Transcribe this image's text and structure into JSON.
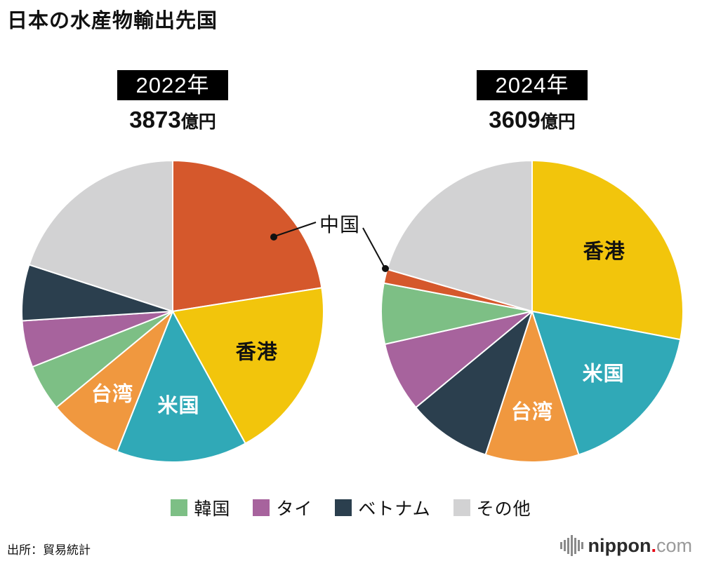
{
  "title": "日本の水産物輸出先国",
  "callout": {
    "label": "中国"
  },
  "colors": {
    "badge_bg": "#000000",
    "badge_text": "#ffffff",
    "callout_line": "#111111",
    "logo_dot": "#e60012"
  },
  "legend": {
    "items": [
      {
        "label": "韓国",
        "color": "#7dbf85"
      },
      {
        "label": "タイ",
        "color": "#a7639d"
      },
      {
        "label": "ベトナム",
        "color": "#2b3f4e"
      },
      {
        "label": "その他",
        "color": "#d2d2d3"
      }
    ]
  },
  "footer": {
    "source": "出所：貿易統計",
    "logo": {
      "brand": "nippon",
      "dot": ".",
      "tld": "com"
    }
  },
  "chart_data": [
    {
      "type": "pie",
      "year_label": "2022年",
      "total_number": "3873",
      "total_unit": "億円",
      "total_text": "3873億円",
      "start_angle": "top",
      "direction": "clockwise",
      "unit": "percent",
      "slices": [
        {
          "label": "中国",
          "percent": 22.5,
          "color": "#d5582c",
          "label_inside": false
        },
        {
          "label": "香港",
          "percent": 19.5,
          "color": "#f2c50c",
          "label_inside": true,
          "label_color": "#111111",
          "label_r": 0.62
        },
        {
          "label": "米国",
          "percent": 14.0,
          "color": "#30a9b7",
          "label_inside": true,
          "label_color": "#ffffff",
          "label_r": 0.63
        },
        {
          "label": "台湾",
          "percent": 8.0,
          "color": "#f0983f",
          "label_inside": true,
          "label_color": "#ffffff",
          "label_r": 0.68
        },
        {
          "label": "韓国",
          "percent": 5.0,
          "color": "#7dbf85",
          "label_inside": false
        },
        {
          "label": "タイ",
          "percent": 5.0,
          "color": "#a7639d",
          "label_inside": false
        },
        {
          "label": "ベトナム",
          "percent": 6.0,
          "color": "#2b3f4e",
          "label_inside": false
        },
        {
          "label": "その他",
          "percent": 20.0,
          "color": "#d2d2d3",
          "label_inside": false
        }
      ]
    },
    {
      "type": "pie",
      "year_label": "2024年",
      "total_number": "3609",
      "total_unit": "億円",
      "total_text": "3609億円",
      "start_angle": "top",
      "direction": "clockwise",
      "unit": "percent",
      "slices": [
        {
          "label": "香港",
          "percent": 28.0,
          "color": "#f2c50c",
          "label_inside": true,
          "label_color": "#111111",
          "label_r": 0.62
        },
        {
          "label": "米国",
          "percent": 17.0,
          "color": "#30a9b7",
          "label_inside": true,
          "label_color": "#ffffff",
          "label_r": 0.63
        },
        {
          "label": "台湾",
          "percent": 10.0,
          "color": "#f0983f",
          "label_inside": true,
          "label_color": "#ffffff",
          "label_r": 0.67
        },
        {
          "label": "ベトナム",
          "percent": 9.0,
          "color": "#2b3f4e",
          "label_inside": false
        },
        {
          "label": "タイ",
          "percent": 7.5,
          "color": "#a7639d",
          "label_inside": false
        },
        {
          "label": "韓国",
          "percent": 6.5,
          "color": "#7dbf85",
          "label_inside": false
        },
        {
          "label": "中国",
          "percent": 1.5,
          "color": "#d5582c",
          "label_inside": false
        },
        {
          "label": "その他",
          "percent": 20.5,
          "color": "#d2d2d3",
          "label_inside": false
        }
      ]
    }
  ]
}
